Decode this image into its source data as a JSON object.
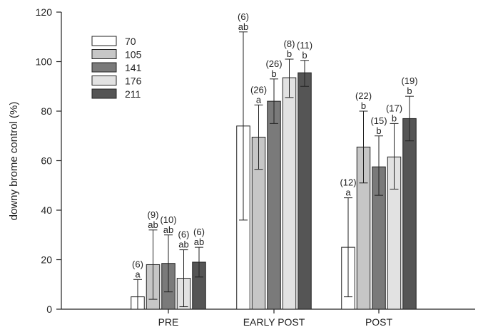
{
  "chart_data": {
    "type": "bar",
    "ylabel": "downy brome control (%)",
    "ylim": [
      0,
      120
    ],
    "yticks": [
      0,
      20,
      40,
      60,
      80,
      100,
      120
    ],
    "categories": [
      "PRE",
      "EARLY POST",
      "POST"
    ],
    "grid": false,
    "legend_position": "top-left",
    "series": [
      {
        "name": "70",
        "color": "#ffffff",
        "values": [
          5,
          74,
          25
        ],
        "err_low": [
          0,
          36,
          5
        ],
        "err_high": [
          12,
          112,
          45
        ],
        "letters": [
          "a",
          "ab",
          "a"
        ],
        "n": [
          "(6)",
          "(6)",
          "(12)"
        ]
      },
      {
        "name": "105",
        "color": "#c6c6c6",
        "values": [
          18,
          69.5,
          65.5
        ],
        "err_low": [
          4,
          56.5,
          51
        ],
        "err_high": [
          32,
          82.5,
          80
        ],
        "letters": [
          "ab",
          "a",
          "b"
        ],
        "n": [
          "(9)",
          "(26)",
          "(22)"
        ]
      },
      {
        "name": "141",
        "color": "#7a7a7a",
        "values": [
          18.5,
          84,
          57.5
        ],
        "err_low": [
          7,
          75,
          46
        ],
        "err_high": [
          30,
          93,
          70
        ],
        "letters": [
          "ab",
          "b",
          "b"
        ],
        "n": [
          "(10)",
          "(26)",
          "(15)"
        ]
      },
      {
        "name": "176",
        "color": "#e2e2e2",
        "values": [
          12.5,
          93.5,
          61.5
        ],
        "err_low": [
          1,
          85.5,
          48.5
        ],
        "err_high": [
          24,
          101,
          75
        ],
        "letters": [
          "ab",
          "b",
          "b"
        ],
        "n": [
          "(6)",
          "(8)",
          "(17)"
        ]
      },
      {
        "name": "211",
        "color": "#555555",
        "values": [
          19,
          95.5,
          77
        ],
        "err_low": [
          13,
          90,
          68
        ],
        "err_high": [
          25,
          100.5,
          86
        ],
        "letters": [
          "ab",
          "b",
          "b"
        ],
        "n": [
          "(6)",
          "(11)",
          "(19)"
        ]
      }
    ]
  }
}
